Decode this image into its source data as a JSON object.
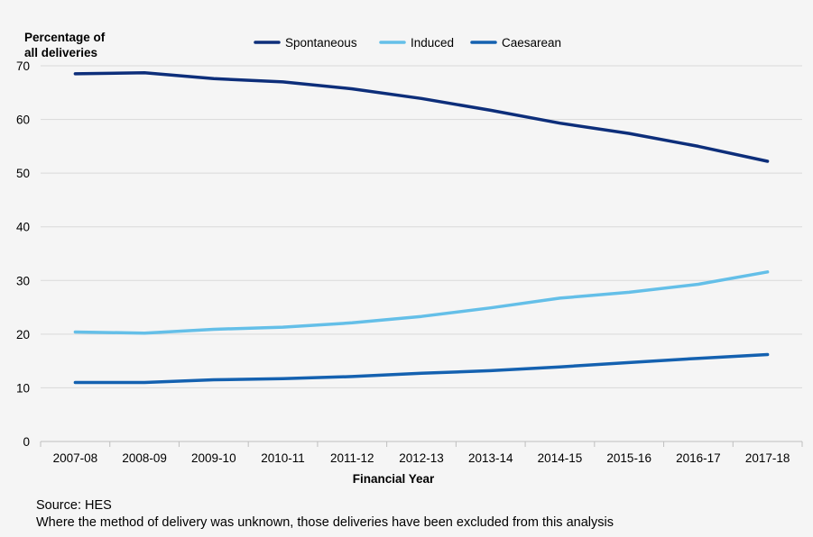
{
  "chart_data": {
    "type": "line",
    "title": "",
    "ylabel_lines": [
      "Percentage of",
      "all deliveries"
    ],
    "xlabel": "Financial Year",
    "ylim": [
      0,
      70
    ],
    "yticks": [
      0,
      10,
      20,
      30,
      40,
      50,
      60,
      70
    ],
    "grid": true,
    "legend_position": "top",
    "categories": [
      "2007-08",
      "2008-09",
      "2009-10",
      "2010-11",
      "2011-12",
      "2012-13",
      "2013-14",
      "2014-15",
      "2015-16",
      "2016-17",
      "2017-18"
    ],
    "series": [
      {
        "name": "Spontaneous",
        "color": "#0d2e7a",
        "values": [
          68.5,
          68.7,
          67.6,
          67.0,
          65.7,
          63.9,
          61.7,
          59.3,
          57.4,
          55.0,
          52.2
        ]
      },
      {
        "name": "Induced",
        "color": "#64bfe8",
        "values": [
          20.4,
          20.2,
          20.9,
          21.3,
          22.1,
          23.3,
          24.9,
          26.7,
          27.8,
          29.3,
          31.6
        ]
      },
      {
        "name": "Caesarean",
        "color": "#1461b0",
        "values": [
          11.0,
          11.0,
          11.5,
          11.7,
          12.1,
          12.7,
          13.2,
          13.9,
          14.7,
          15.5,
          16.2
        ]
      }
    ]
  },
  "footnotes": {
    "source": "Source: HES",
    "note": "Where the method of delivery was unknown, those deliveries have been excluded from this analysis"
  }
}
